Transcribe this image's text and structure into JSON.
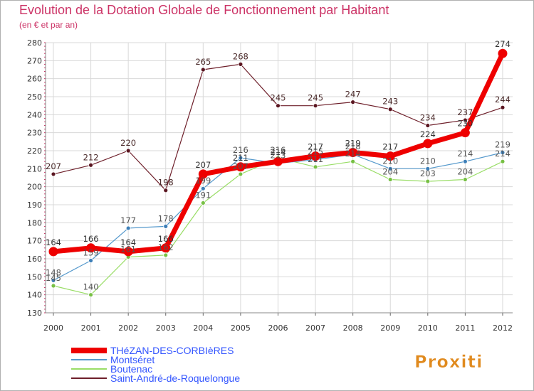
{
  "chart_data": {
    "type": "line",
    "title": "Evolution de la Dotation Globale de Fonctionnement par Habitant",
    "subtitle": "(en € et par an)",
    "xlabel": "",
    "ylabel": "",
    "ylim": [
      130,
      280
    ],
    "y_ticks": [
      130,
      140,
      150,
      160,
      170,
      180,
      190,
      200,
      210,
      220,
      230,
      240,
      250,
      260,
      270,
      280
    ],
    "categories": [
      "2000",
      "2001",
      "2002",
      "2003",
      "2004",
      "2005",
      "2006",
      "2007",
      "2008",
      "2009",
      "2010",
      "2011",
      "2012"
    ],
    "grid": true,
    "legend_position": "bottom-left",
    "series": [
      {
        "name": "Saint-André-de-Roquelongue",
        "color": "#6e1f2a",
        "values": [
          207,
          212,
          220,
          198,
          265,
          268,
          245,
          245,
          247,
          243,
          234,
          237,
          244
        ]
      },
      {
        "name": "Boutenac",
        "color": "#99dd66",
        "values": [
          145,
          140,
          161,
          162,
          191,
          207,
          216,
          211,
          214,
          204,
          203,
          204,
          214
        ]
      },
      {
        "name": "Montséret",
        "color": "#5599cc",
        "values": [
          148,
          159,
          177,
          178,
          199,
          216,
          213,
          215,
          218,
          210,
          210,
          214,
          219
        ]
      },
      {
        "name": "THéZAN-DES-CORBIèRES",
        "color": "#ee0000",
        "values": [
          164,
          166,
          164,
          166,
          207,
          211,
          214,
          217,
          219,
          217,
          224,
          230,
          274
        ]
      }
    ],
    "legend_order": [
      3,
      2,
      1,
      0
    ],
    "colors": {
      "title": "#cc3366",
      "axis_label": "#333333",
      "grid": "#d8d8d8",
      "legend_text": "#3355ff"
    }
  },
  "watermark": "Proxiti"
}
